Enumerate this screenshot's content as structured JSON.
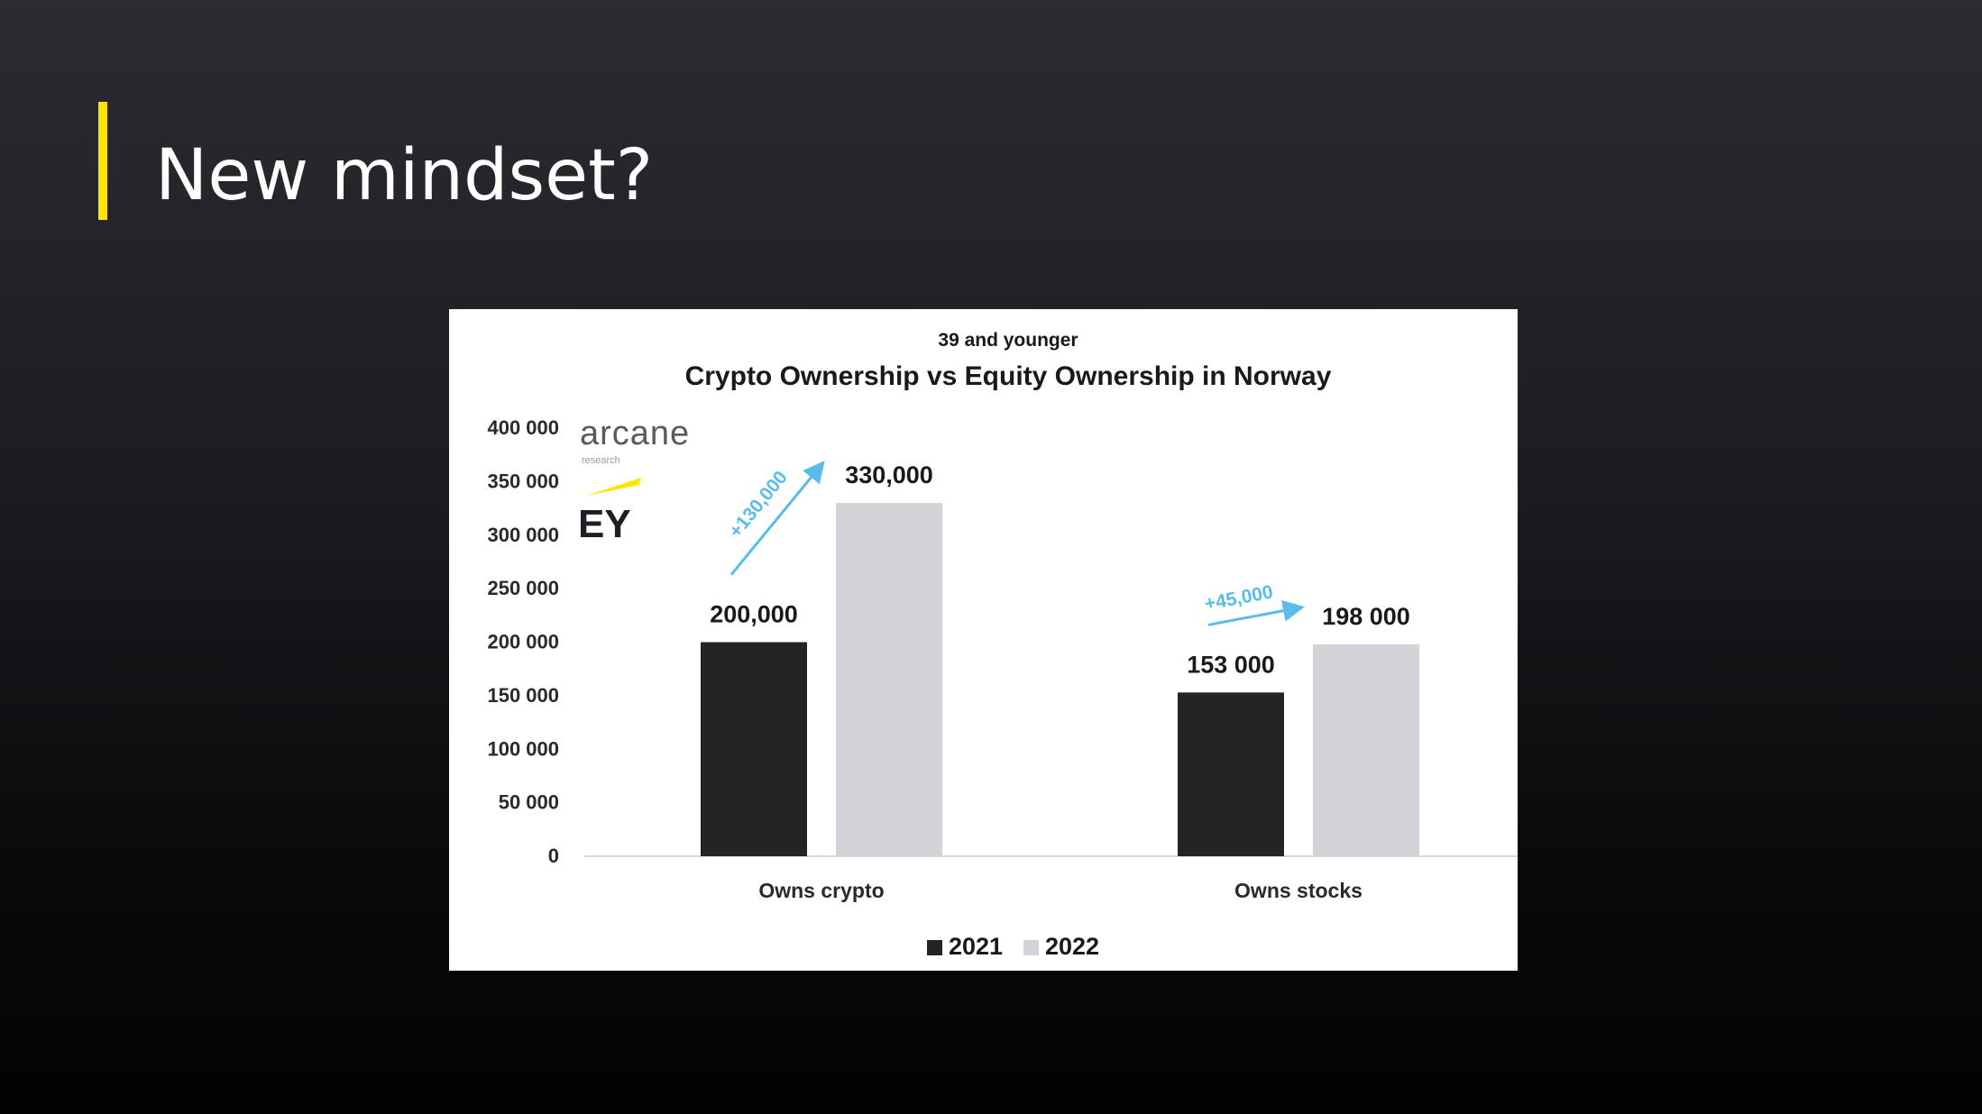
{
  "slide": {
    "title": "New mindset?",
    "accent_color": "#ffe600"
  },
  "logos": {
    "arcane_name": "arcane",
    "arcane_sub": "research",
    "ey_name": "EY"
  },
  "chart_data": {
    "type": "bar",
    "subtitle": "39 and younger",
    "title": "Crypto Ownership vs Equity Ownership in Norway",
    "categories": [
      "Owns crypto",
      "Owns stocks"
    ],
    "series": [
      {
        "name": "2021",
        "values": [
          200000,
          153000
        ],
        "labels": [
          "200,000",
          "153 000"
        ],
        "color": "#222426"
      },
      {
        "name": "2022",
        "values": [
          330000,
          198000
        ],
        "labels": [
          "330,000",
          "198 000"
        ],
        "color": "#d1d3d6"
      }
    ],
    "yticks": [
      0,
      50000,
      100000,
      150000,
      200000,
      250000,
      300000,
      350000,
      400000
    ],
    "ytick_labels": [
      "0",
      "50 000",
      "100 000",
      "150 000",
      "200 000",
      "250 000",
      "300 000",
      "350 000",
      "400 000"
    ],
    "ylim": [
      0,
      400000
    ],
    "annotations": [
      {
        "text": "+130,000",
        "category": 0,
        "color": "#5bbbea"
      },
      {
        "text": "+45,000",
        "category": 1,
        "color": "#5bbbea"
      }
    ],
    "legend_position": "bottom-center",
    "grid": false
  }
}
